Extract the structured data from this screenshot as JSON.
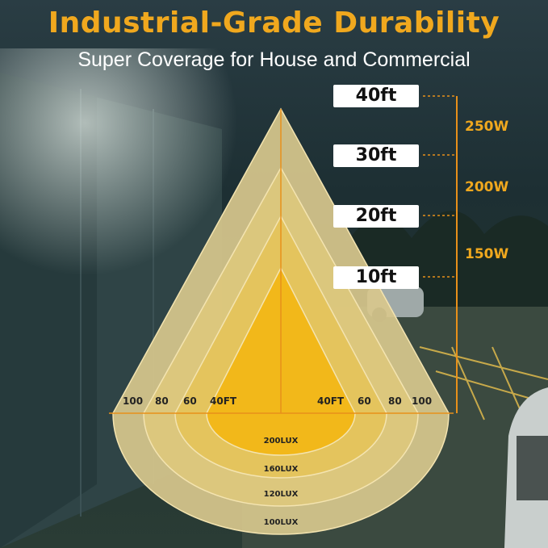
{
  "header": {
    "title": "Industrial-Grade Durability",
    "subtitle": "Super Coverage for House and Commercial"
  },
  "height_tags": [
    "40ft",
    "30ft",
    "20ft",
    "10ft"
  ],
  "wattages": [
    "250W",
    "200W",
    "150W"
  ],
  "scale_labels": {
    "left": [
      "100",
      "80",
      "60",
      "40FT"
    ],
    "right": [
      "40FT",
      "60",
      "80",
      "100"
    ]
  },
  "lux_labels": [
    "200LUX",
    "160LUX",
    "120LUX",
    "100LUX"
  ],
  "colors": {
    "accent": "#f0a81e",
    "cone_outer": "#d9c57a",
    "cone_inner": "#f2b81a",
    "guide_line": "#e8901a"
  }
}
